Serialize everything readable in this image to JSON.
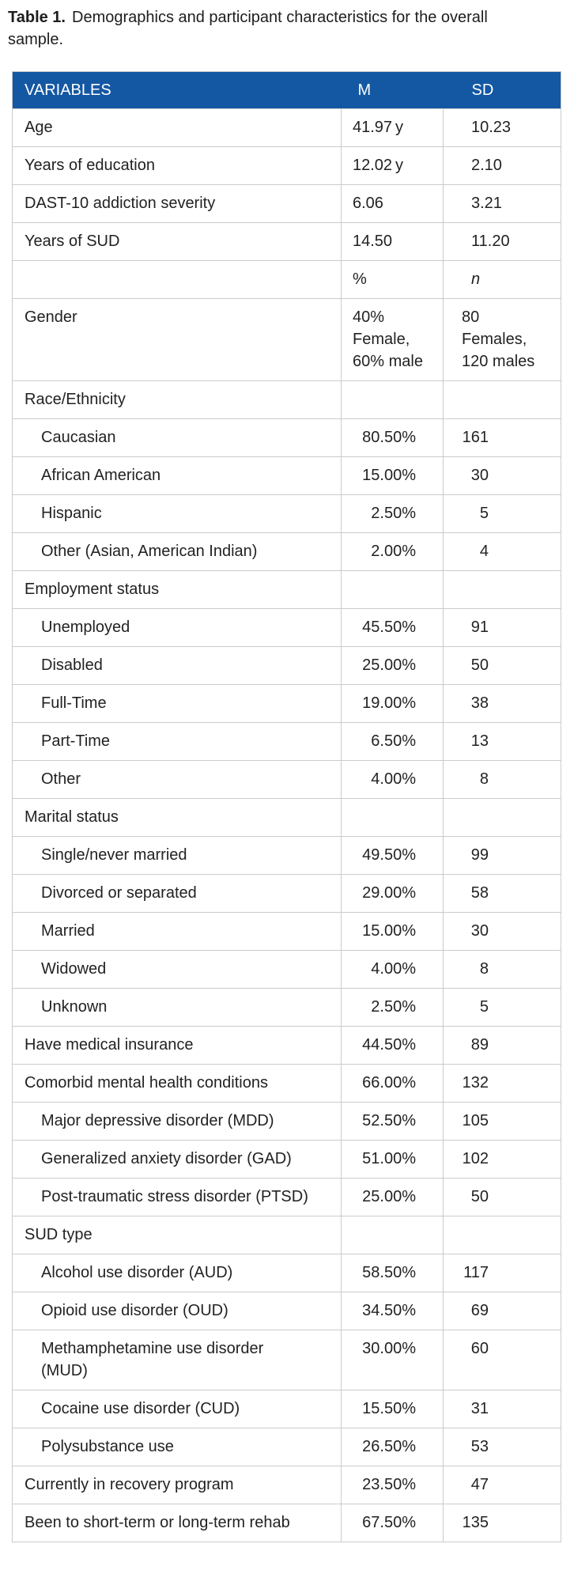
{
  "caption": {
    "label": "Table 1.",
    "text": "Demographics and participant characteristics for the overall sample."
  },
  "colors": {
    "header_bg": "#1458a3",
    "header_text": "#ffffff",
    "row_border": "#c9cbcd",
    "body_text": "#222222"
  },
  "table": {
    "columns": [
      "VARIABLES",
      "M",
      "SD"
    ],
    "rows": [
      {
        "label": "Age",
        "m": "41.97 y",
        "sd": "10.23",
        "type": "msd",
        "indent": false
      },
      {
        "label": "Years of education",
        "m": "12.02 y",
        "sd": "2.10",
        "type": "msd",
        "indent": false
      },
      {
        "label": "DAST-10 addiction severity",
        "m": "6.06",
        "sd": "3.21",
        "type": "msd",
        "indent": false
      },
      {
        "label": "Years of SUD",
        "m": "14.50",
        "sd": "11.20",
        "type": "msd",
        "indent": false
      },
      {
        "label": "",
        "m": "%",
        "sd": "n",
        "type": "subhead",
        "indent": false
      },
      {
        "label": "Gender",
        "m": "40%\nFemale,\n60% male",
        "sd": "80\nFemales,\n120 males",
        "type": "gender",
        "indent": false
      },
      {
        "label": "Race/Ethnicity",
        "m": "",
        "sd": "",
        "type": "section",
        "indent": false
      },
      {
        "label": "Caucasian",
        "m": "80.50%",
        "sd": "161",
        "type": "pct",
        "indent": true
      },
      {
        "label": "African American",
        "m": "15.00%",
        "sd": "30",
        "type": "pct",
        "indent": true
      },
      {
        "label": "Hispanic",
        "m": "2.50%",
        "sd": "5",
        "type": "pct",
        "indent": true
      },
      {
        "label": "Other (Asian, American Indian)",
        "m": "2.00%",
        "sd": "4",
        "type": "pct",
        "indent": true
      },
      {
        "label": "Employment status",
        "m": "",
        "sd": "",
        "type": "section",
        "indent": false
      },
      {
        "label": "Unemployed",
        "m": "45.50%",
        "sd": "91",
        "type": "pct",
        "indent": true
      },
      {
        "label": "Disabled",
        "m": "25.00%",
        "sd": "50",
        "type": "pct",
        "indent": true
      },
      {
        "label": "Full-Time",
        "m": "19.00%",
        "sd": "38",
        "type": "pct",
        "indent": true
      },
      {
        "label": "Part-Time",
        "m": "6.50%",
        "sd": "13",
        "type": "pct",
        "indent": true
      },
      {
        "label": "Other",
        "m": "4.00%",
        "sd": "8",
        "type": "pct",
        "indent": true
      },
      {
        "label": "Marital status",
        "m": "",
        "sd": "",
        "type": "section",
        "indent": false
      },
      {
        "label": "Single/never married",
        "m": "49.50%",
        "sd": "99",
        "type": "pct",
        "indent": true
      },
      {
        "label": "Divorced or separated",
        "m": "29.00%",
        "sd": "58",
        "type": "pct",
        "indent": true
      },
      {
        "label": "Married",
        "m": "15.00%",
        "sd": "30",
        "type": "pct",
        "indent": true
      },
      {
        "label": "Widowed",
        "m": "4.00%",
        "sd": "8",
        "type": "pct",
        "indent": true
      },
      {
        "label": "Unknown",
        "m": "2.50%",
        "sd": "5",
        "type": "pct",
        "indent": true
      },
      {
        "label": "Have medical insurance",
        "m": "44.50%",
        "sd": "89",
        "type": "pct",
        "indent": false
      },
      {
        "label": "Comorbid mental health conditions",
        "m": "66.00%",
        "sd": "132",
        "type": "pct",
        "indent": false
      },
      {
        "label": "Major depressive disorder (MDD)",
        "m": "52.50%",
        "sd": "105",
        "type": "pct",
        "indent": true
      },
      {
        "label": "Generalized anxiety disorder (GAD)",
        "m": "51.00%",
        "sd": "102",
        "type": "pct",
        "indent": true
      },
      {
        "label": "Post-traumatic stress disorder (PTSD)",
        "m": "25.00%",
        "sd": "50",
        "type": "pct",
        "indent": true
      },
      {
        "label": "SUD type",
        "m": "",
        "sd": "",
        "type": "section",
        "indent": false
      },
      {
        "label": "Alcohol use disorder (AUD)",
        "m": "58.50%",
        "sd": "117",
        "type": "pct",
        "indent": true
      },
      {
        "label": "Opioid use disorder (OUD)",
        "m": "34.50%",
        "sd": "69",
        "type": "pct",
        "indent": true
      },
      {
        "label": "Methamphetamine use disorder\n(MUD)",
        "m": "30.00%",
        "sd": "60",
        "type": "pct",
        "indent": true
      },
      {
        "label": "Cocaine use disorder (CUD)",
        "m": "15.50%",
        "sd": "31",
        "type": "pct",
        "indent": true
      },
      {
        "label": "Polysubstance use",
        "m": "26.50%",
        "sd": "53",
        "type": "pct",
        "indent": true
      },
      {
        "label": "Currently in recovery program",
        "m": "23.50%",
        "sd": "47",
        "type": "pct",
        "indent": false
      },
      {
        "label": "Been to short-term or long-term rehab",
        "m": "67.50%",
        "sd": "135",
        "type": "pct",
        "indent": false
      }
    ]
  }
}
